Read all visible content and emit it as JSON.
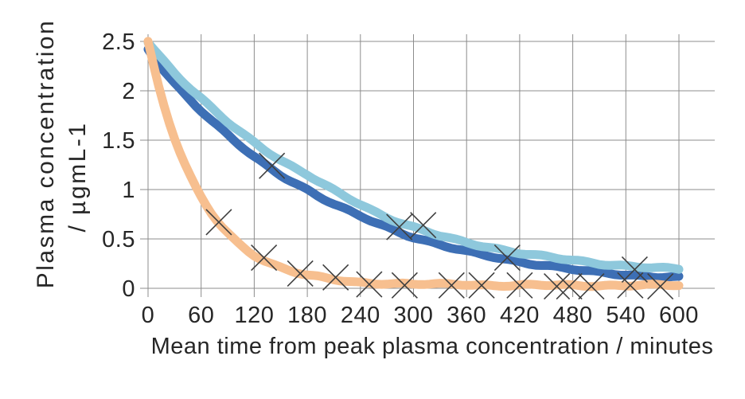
{
  "chart_data": {
    "type": "line",
    "title": "",
    "xlabel": "Mean time from peak plasma concentration /  minutes",
    "ylabel_line1": "Plasma concentration",
    "ylabel_line2": "/ µgmL-1",
    "xlim": [
      0,
      600
    ],
    "ylim": [
      0,
      2.5
    ],
    "grid": true,
    "grid_color": "#8c8c8c",
    "text_color": "#262626",
    "background_color": "#ffffff",
    "x_ticks": {
      "values": [
        0,
        60,
        120,
        180,
        240,
        300,
        360,
        420,
        480,
        540,
        600
      ],
      "labels": [
        "0",
        "60",
        "120",
        "180",
        "240",
        "300",
        "360",
        "420",
        "480",
        "540",
        "600"
      ]
    },
    "y_ticks": {
      "values": [
        0,
        0.5,
        1,
        1.5,
        2,
        2.5
      ],
      "labels": [
        "0",
        "0.5",
        "1",
        "1.5",
        "2",
        "2.5"
      ]
    },
    "t_samples": [
      0,
      30,
      60,
      90,
      120,
      150,
      180,
      210,
      240,
      270,
      300,
      330,
      360,
      390,
      420,
      450,
      480,
      510,
      540,
      570,
      600
    ],
    "series": [
      {
        "name": "dark-blue-curve",
        "color": "#3D6FB5",
        "line_width": 11,
        "values": [
          2.42,
          2.08,
          1.8,
          1.55,
          1.33,
          1.15,
          1.0,
          0.85,
          0.73,
          0.62,
          0.52,
          0.44,
          0.37,
          0.32,
          0.27,
          0.23,
          0.19,
          0.16,
          0.14,
          0.12,
          0.11
        ],
        "marker_points": [
          [
            140,
            1.24
          ],
          [
            284,
            0.62
          ],
          [
            311,
            0.64
          ],
          [
            406,
            0.31
          ],
          [
            550,
            0.19
          ]
        ]
      },
      {
        "name": "light-blue-curve",
        "color": "#8EC8DC",
        "line_width": 11,
        "values": [
          2.5,
          2.18,
          1.92,
          1.68,
          1.48,
          1.3,
          1.15,
          0.99,
          0.85,
          0.72,
          0.62,
          0.53,
          0.46,
          0.41,
          0.36,
          0.32,
          0.28,
          0.25,
          0.23,
          0.21,
          0.19
        ],
        "marker_points": []
      },
      {
        "name": "orange-curve",
        "color": "#F7BF8F",
        "line_width": 11,
        "values": [
          2.5,
          1.52,
          0.92,
          0.56,
          0.34,
          0.21,
          0.13,
          0.09,
          0.06,
          0.05,
          0.04,
          0.04,
          0.04,
          0.03,
          0.03,
          0.03,
          0.03,
          0.03,
          0.03,
          0.03,
          0.03
        ],
        "marker_points": [
          [
            80,
            0.67
          ],
          [
            131,
            0.31
          ],
          [
            172,
            0.15
          ],
          [
            212,
            0.11
          ],
          [
            250,
            0.04
          ],
          [
            290,
            0.03
          ],
          [
            343,
            0.03
          ],
          [
            377,
            0.03
          ],
          [
            420,
            0.03
          ],
          [
            462,
            0.02
          ],
          [
            476,
            0.02
          ],
          [
            501,
            0.02
          ],
          [
            545,
            0.03
          ],
          [
            579,
            0.02
          ]
        ]
      }
    ],
    "marker_style": {
      "shape": "x",
      "color": "#3f3f3f",
      "half_size": 16,
      "stroke_width": 1.6
    },
    "legend": null
  }
}
